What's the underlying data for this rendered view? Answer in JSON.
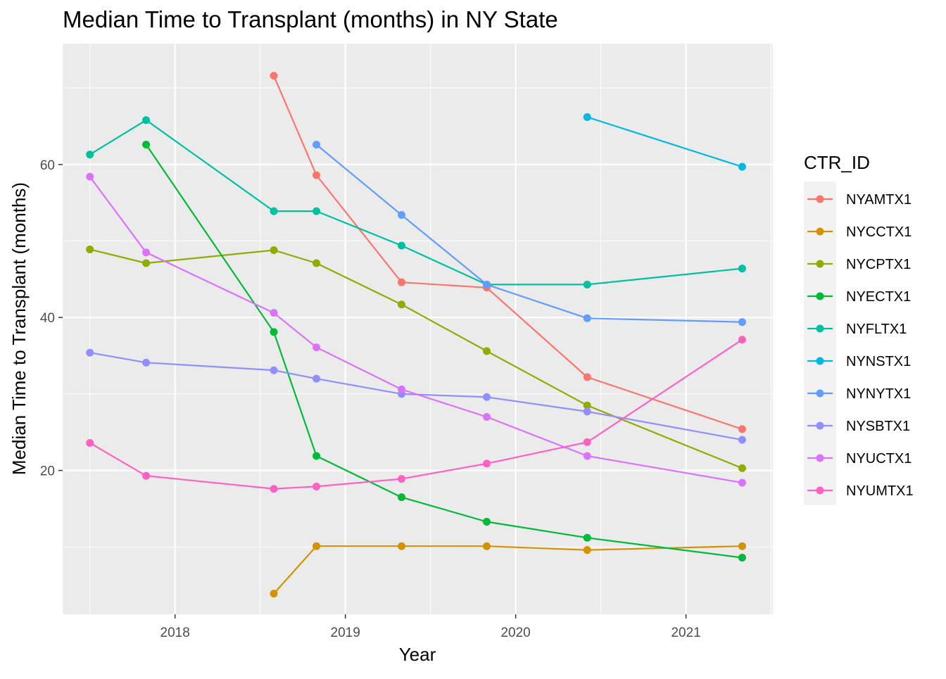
{
  "chart_data": {
    "type": "line",
    "title": "Median Time to Transplant (months) in NY State",
    "xlabel": "Year",
    "ylabel": "Median Time to Transplant (months)",
    "xlim": [
      2017.34,
      2021.51
    ],
    "ylim": [
      1.2,
      75.8
    ],
    "x_ticks": [
      2018,
      2019,
      2020,
      2021
    ],
    "y_ticks": [
      20,
      40,
      60
    ],
    "grid": true,
    "legend": {
      "title": "CTR_ID",
      "position": "right"
    },
    "series": [
      {
        "name": "NYAMTX1",
        "color": "#F8766D",
        "points": [
          [
            2018.58,
            71.6
          ],
          [
            2018.83,
            58.6
          ],
          [
            2019.33,
            44.6
          ],
          [
            2019.83,
            43.9
          ],
          [
            2020.42,
            32.2
          ],
          [
            2021.33,
            25.4
          ]
        ]
      },
      {
        "name": "NYCCTX1",
        "color": "#D39200",
        "points": [
          [
            2018.58,
            3.9
          ],
          [
            2018.83,
            10.1
          ],
          [
            2019.33,
            10.1
          ],
          [
            2019.83,
            10.1
          ],
          [
            2020.42,
            9.6
          ],
          [
            2021.33,
            10.1
          ]
        ]
      },
      {
        "name": "NYCPTX1",
        "color": "#93AA00",
        "points": [
          [
            2017.5,
            48.9
          ],
          [
            2017.83,
            47.1
          ],
          [
            2018.58,
            48.8
          ],
          [
            2018.83,
            47.1
          ],
          [
            2019.33,
            41.7
          ],
          [
            2019.83,
            35.6
          ],
          [
            2020.42,
            28.5
          ],
          [
            2021.33,
            20.3
          ]
        ]
      },
      {
        "name": "NYECTX1",
        "color": "#00BA38",
        "points": [
          [
            2017.83,
            62.6
          ],
          [
            2018.58,
            38.1
          ],
          [
            2018.83,
            21.9
          ],
          [
            2019.33,
            16.5
          ],
          [
            2019.83,
            13.3
          ],
          [
            2020.42,
            11.2
          ],
          [
            2021.33,
            8.6
          ]
        ]
      },
      {
        "name": "NYFLTX1",
        "color": "#00C19F",
        "points": [
          [
            2017.5,
            61.3
          ],
          [
            2017.83,
            65.8
          ],
          [
            2018.58,
            53.9
          ],
          [
            2018.83,
            53.9
          ],
          [
            2019.33,
            49.4
          ],
          [
            2019.83,
            44.3
          ],
          [
            2020.42,
            44.3
          ],
          [
            2021.33,
            46.4
          ]
        ]
      },
      {
        "name": "NYNSTX1",
        "color": "#00B9E3",
        "points": [
          [
            2020.42,
            66.2
          ],
          [
            2021.33,
            59.7
          ]
        ]
      },
      {
        "name": "NYNYTX1",
        "color": "#619CFF",
        "points": [
          [
            2018.83,
            62.6
          ],
          [
            2019.33,
            53.4
          ],
          [
            2019.83,
            44.3
          ],
          [
            2020.42,
            39.9
          ],
          [
            2021.33,
            39.4
          ]
        ]
      },
      {
        "name": "NYSBTX1",
        "color": "#8F8FFF",
        "points": [
          [
            2017.5,
            35.4
          ],
          [
            2017.83,
            34.1
          ],
          [
            2018.58,
            33.1
          ],
          [
            2018.83,
            32.0
          ],
          [
            2019.33,
            30.0
          ],
          [
            2019.83,
            29.6
          ],
          [
            2020.42,
            27.7
          ],
          [
            2021.33,
            24.0
          ]
        ]
      },
      {
        "name": "NYUCTX1",
        "color": "#DB72FB",
        "points": [
          [
            2017.5,
            58.4
          ],
          [
            2017.83,
            48.5
          ],
          [
            2018.58,
            40.6
          ],
          [
            2018.83,
            36.1
          ],
          [
            2019.33,
            30.6
          ],
          [
            2019.83,
            27.0
          ],
          [
            2020.42,
            21.9
          ],
          [
            2021.33,
            18.4
          ]
        ]
      },
      {
        "name": "NYUMTX1",
        "color": "#FF61C3",
        "points": [
          [
            2017.5,
            23.6
          ],
          [
            2017.83,
            19.3
          ],
          [
            2018.58,
            17.6
          ],
          [
            2018.83,
            17.9
          ],
          [
            2019.33,
            18.9
          ],
          [
            2019.83,
            20.9
          ],
          [
            2020.42,
            23.7
          ],
          [
            2021.33,
            37.1
          ]
        ]
      }
    ]
  }
}
